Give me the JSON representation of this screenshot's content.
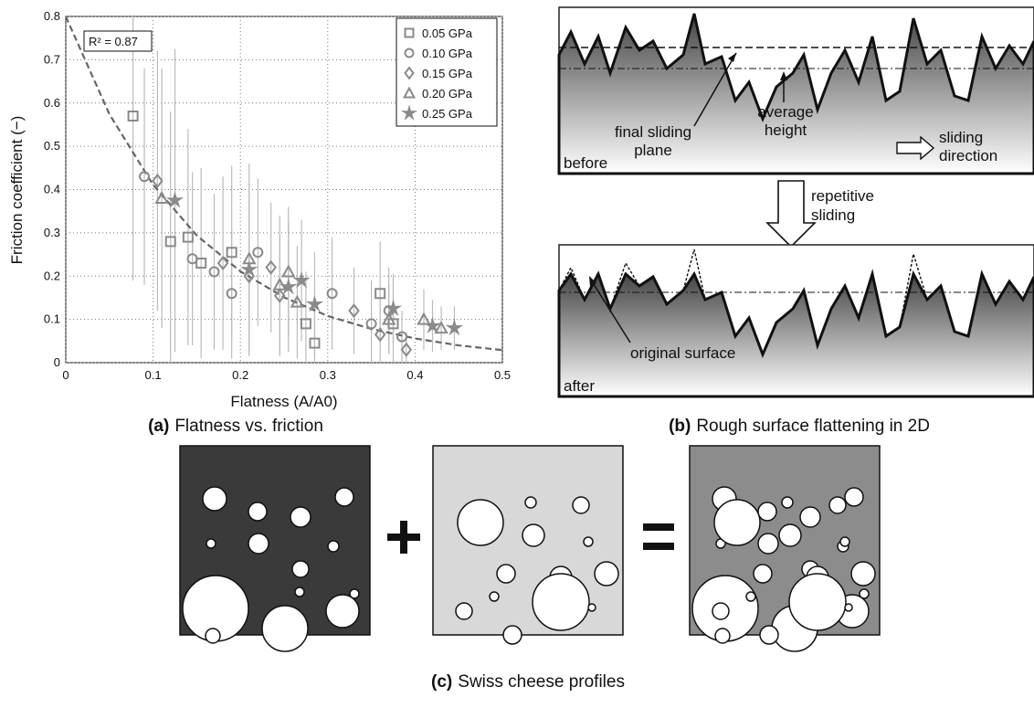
{
  "chart_data": {
    "type": "scatter",
    "xlabel": "Flatness (A/A0)",
    "ylabel": "Friction coefficient (−)",
    "annotation": "R² = 0.87",
    "xlim": [
      0,
      0.5
    ],
    "xticks": [
      0,
      0.1,
      0.2,
      0.3,
      0.4,
      0.5
    ],
    "ylim": [
      0,
      0.8
    ],
    "yticks": [
      0,
      0.1,
      0.2,
      0.3,
      0.4,
      0.5,
      0.6,
      0.7,
      0.8
    ],
    "grid": true,
    "legend": "upper right",
    "series": [
      {
        "name": "0.05 GPa",
        "marker": "square",
        "color": "#8a8a8a",
        "x": [
          0.077,
          0.12,
          0.14,
          0.155,
          0.19,
          0.275,
          0.285,
          0.36,
          0.375
        ],
        "y": [
          0.57,
          0.28,
          0.29,
          0.23,
          0.255,
          0.09,
          0.045,
          0.16,
          0.09
        ],
        "err": [
          0.38,
          0.3,
          0.25,
          0.22,
          0.2,
          0.12,
          0.1,
          0.12,
          0.1
        ]
      },
      {
        "name": "0.10 GPa",
        "marker": "circle",
        "color": "#8a8a8a",
        "x": [
          0.09,
          0.145,
          0.17,
          0.19,
          0.22,
          0.305,
          0.35,
          0.37,
          0.385
        ],
        "y": [
          0.43,
          0.24,
          0.21,
          0.16,
          0.255,
          0.16,
          0.09,
          0.12,
          0.06
        ],
        "err": [
          0.25,
          0.2,
          0.18,
          0.15,
          0.17,
          0.13,
          0.1,
          0.1,
          0.06
        ]
      },
      {
        "name": "0.15 GPa",
        "marker": "diamond",
        "color": "#8a8a8a",
        "x": [
          0.105,
          0.18,
          0.21,
          0.235,
          0.245,
          0.33,
          0.36,
          0.39
        ],
        "y": [
          0.42,
          0.23,
          0.2,
          0.22,
          0.155,
          0.12,
          0.065,
          0.03
        ],
        "err": [
          0.3,
          0.2,
          0.18,
          0.15,
          0.14,
          0.1,
          0.08,
          0.04
        ]
      },
      {
        "name": "0.20 GPa",
        "marker": "triangle",
        "color": "#8a8a8a",
        "x": [
          0.11,
          0.21,
          0.245,
          0.255,
          0.265,
          0.37,
          0.41,
          0.43
        ],
        "y": [
          0.38,
          0.24,
          0.18,
          0.21,
          0.14,
          0.1,
          0.1,
          0.08
        ],
        "err": [
          0.3,
          0.22,
          0.16,
          0.15,
          0.13,
          0.08,
          0.07,
          0.05
        ]
      },
      {
        "name": "0.25 GPa",
        "marker": "star",
        "color": "#8a8a8a",
        "x": [
          0.125,
          0.21,
          0.255,
          0.27,
          0.285,
          0.375,
          0.42,
          0.445
        ],
        "y": [
          0.375,
          0.215,
          0.175,
          0.19,
          0.135,
          0.125,
          0.085,
          0.08
        ],
        "err": [
          0.35,
          0.2,
          0.15,
          0.14,
          0.12,
          0.08,
          0.06,
          0.05
        ]
      }
    ],
    "fit": {
      "color": "#666666",
      "x": [
        0,
        0.05,
        0.1,
        0.15,
        0.2,
        0.25,
        0.3,
        0.35,
        0.4,
        0.45,
        0.5
      ],
      "y": [
        0.8,
        0.574,
        0.411,
        0.294,
        0.211,
        0.151,
        0.108,
        0.078,
        0.056,
        0.04,
        0.029
      ]
    }
  },
  "panel_b": {
    "final_plane": [
      "final sliding",
      "plane"
    ],
    "average": [
      "average",
      "height"
    ],
    "direction": [
      "sliding",
      "direction"
    ],
    "before": "before",
    "repeat": [
      "repetitive",
      "sliding"
    ],
    "original": "original surface",
    "after": "after"
  },
  "captions": [
    {
      "label": "(a)",
      "text": "Flatness vs. friction"
    },
    {
      "label": "(b)",
      "text": "Rough surface flattening in 2D"
    },
    {
      "label": "(c)",
      "text": "Swiss cheese profiles"
    }
  ]
}
